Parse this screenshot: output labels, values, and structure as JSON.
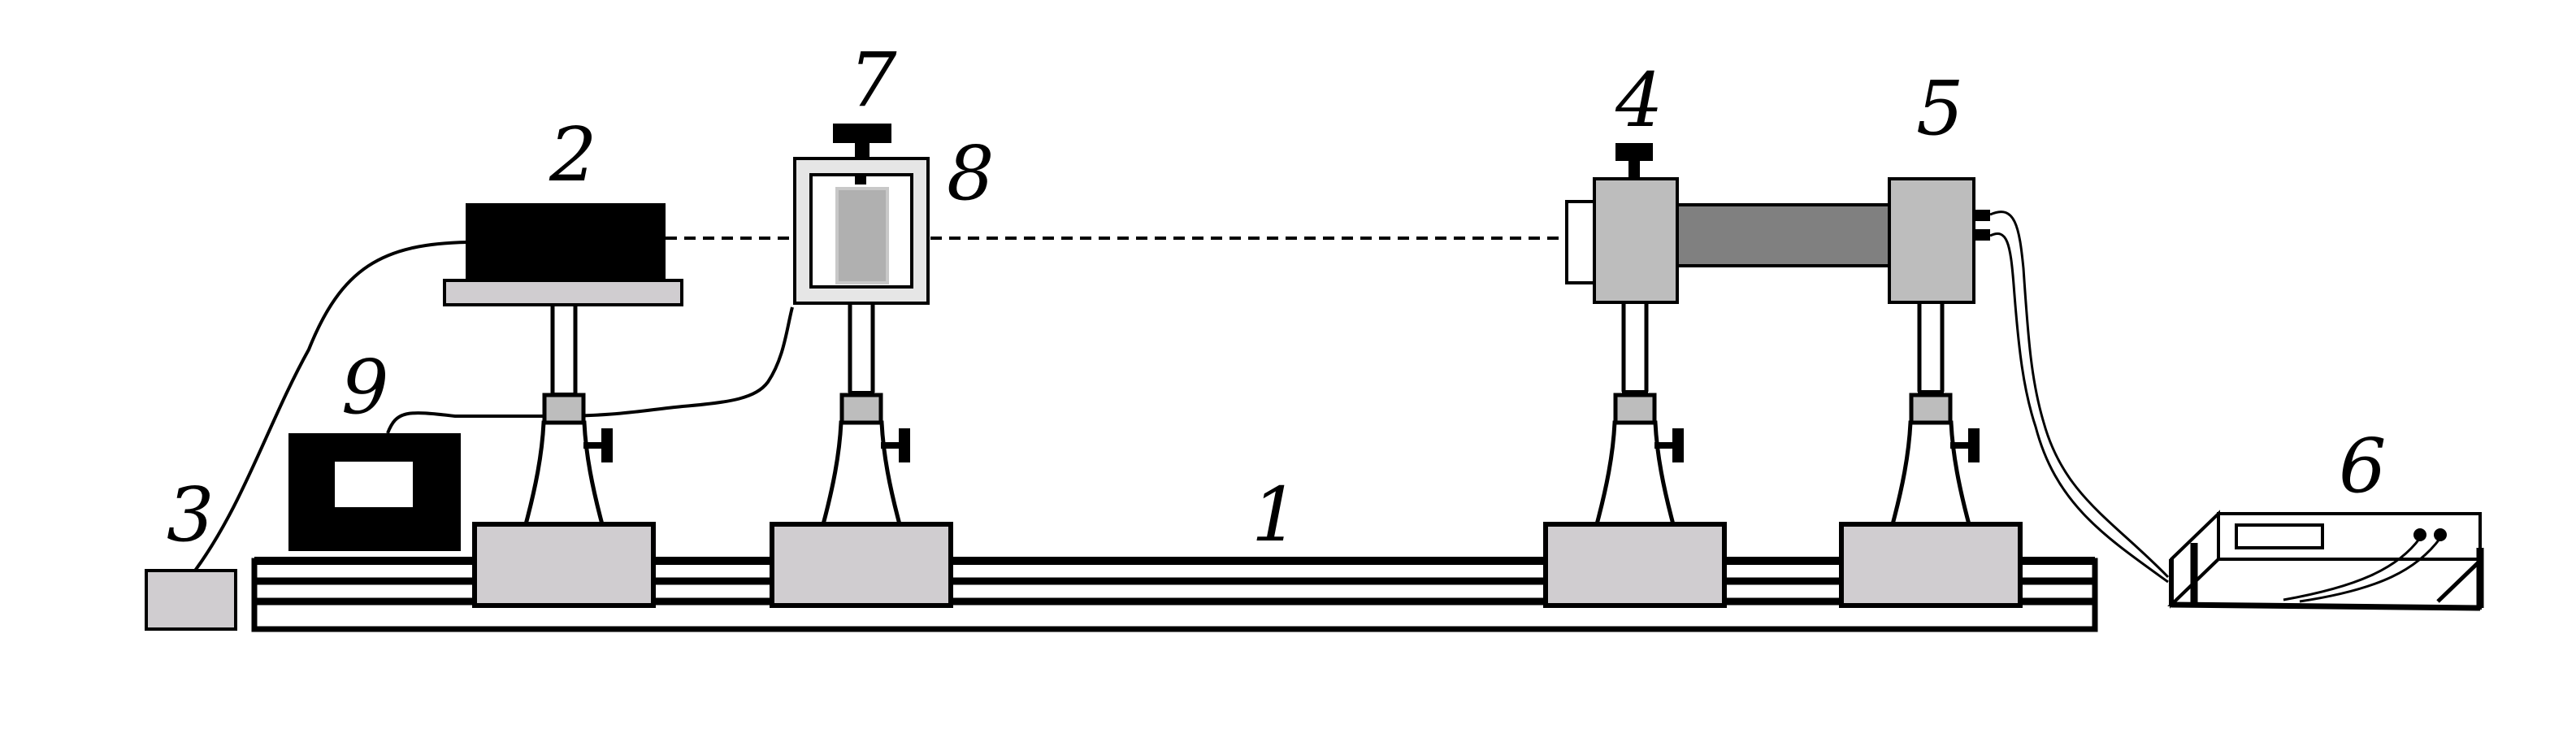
{
  "labels": {
    "bench": "1",
    "laser": "2",
    "laser_psu": "3",
    "front_holder": "4",
    "rear_holder": "5",
    "meter": "6",
    "screw": "7",
    "sample_cell": "8",
    "control_box": "9"
  },
  "colors": {
    "black": "#000000",
    "light_gray": "#d0cdd0",
    "mid_gray": "#bdbdbd",
    "tube_gray": "#808080",
    "sample_gray": "#b0b0b0"
  }
}
